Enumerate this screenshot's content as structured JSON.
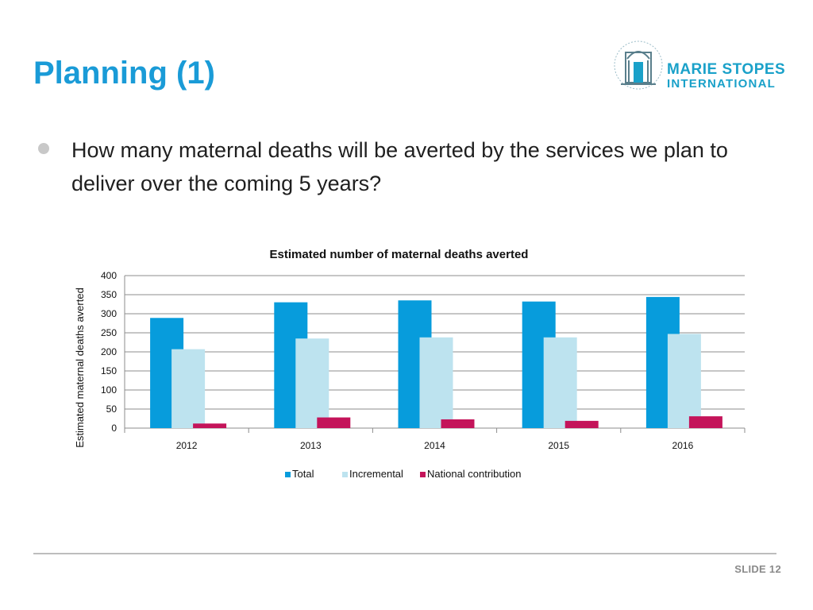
{
  "slide": {
    "title": "Planning (1)",
    "bullet": "How many maternal deaths will be averted by the services we plan to deliver over the coming 5 years?",
    "slide_number": "SLIDE 12"
  },
  "logo": {
    "line1": "MARIE STOPES",
    "line2": "INTERNATIONAL",
    "ring_text": "PROVIDING CHOICES IN REPRODUCTIVE HEALTHCARE",
    "color": "#1aa1c9"
  },
  "colors": {
    "title": "#1a9bd7",
    "total": "#079cdc",
    "incremental": "#bde3ef",
    "national": "#c4145a"
  },
  "chart_data": {
    "type": "bar",
    "title": "Estimated number of maternal deaths averted",
    "xlabel": "",
    "ylabel": "Estimated maternal deaths averted",
    "categories": [
      "2012",
      "2013",
      "2014",
      "2015",
      "2016"
    ],
    "series": [
      {
        "name": "Total",
        "values": [
          289,
          330,
          335,
          332,
          344
        ],
        "color": "#079cdc"
      },
      {
        "name": "Incremental",
        "values": [
          207,
          235,
          238,
          238,
          247
        ],
        "color": "#bde3ef"
      },
      {
        "name": "National contribution",
        "values": [
          12,
          28,
          23,
          19,
          31
        ],
        "color": "#c4145a"
      }
    ],
    "ylim": [
      0,
      400
    ],
    "yticks": [
      0,
      50,
      100,
      150,
      200,
      250,
      300,
      350,
      400
    ],
    "grid": true,
    "legend": "bottom"
  }
}
